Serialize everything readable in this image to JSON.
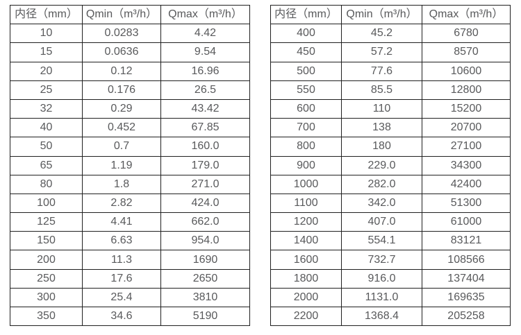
{
  "colors": {
    "background": "#ffffff",
    "border": "#1f1f1f",
    "text": "#58595b"
  },
  "tables": [
    {
      "name": "flow-spec-table-small-diameters",
      "headers": [
        "内径（mm）",
        "Qmin（m³/h）",
        "Qmax（m³/h）"
      ],
      "rows": [
        [
          "10",
          "0.0283",
          "4.42"
        ],
        [
          "15",
          "0.0636",
          "9.54"
        ],
        [
          "20",
          "0.12",
          "16.96"
        ],
        [
          "25",
          "0.176",
          "26.5"
        ],
        [
          "32",
          "0.29",
          "43.42"
        ],
        [
          "40",
          "0.452",
          "67.85"
        ],
        [
          "50",
          "0.7",
          "160.0"
        ],
        [
          "65",
          "1.19",
          "179.0"
        ],
        [
          "80",
          "1.8",
          "271.0"
        ],
        [
          "100",
          "2.82",
          "424.0"
        ],
        [
          "125",
          "4.41",
          "662.0"
        ],
        [
          "150",
          "6.63",
          "954.0"
        ],
        [
          "200",
          "11.3",
          "1690"
        ],
        [
          "250",
          "17.6",
          "2650"
        ],
        [
          "300",
          "25.4",
          "3810"
        ],
        [
          "350",
          "34.6",
          "5190"
        ]
      ]
    },
    {
      "name": "flow-spec-table-large-diameters",
      "headers": [
        "内径（mm）",
        "Qmin（m³/h）",
        "Qmax（m³/h）"
      ],
      "rows": [
        [
          "400",
          "45.2",
          "6780"
        ],
        [
          "450",
          "57.2",
          "8570"
        ],
        [
          "500",
          "77.6",
          "10600"
        ],
        [
          "550",
          "85.5",
          "12800"
        ],
        [
          "600",
          "110",
          "15200"
        ],
        [
          "700",
          "138",
          "20700"
        ],
        [
          "800",
          "180",
          "27100"
        ],
        [
          "900",
          "229.0",
          "34300"
        ],
        [
          "1000",
          "282.0",
          "42400"
        ],
        [
          "1100",
          "342.0",
          "51300"
        ],
        [
          "1200",
          "407.0",
          "61000"
        ],
        [
          "1400",
          "554.1",
          "83121"
        ],
        [
          "1600",
          "732.7",
          "108566"
        ],
        [
          "1800",
          "916.0",
          "137404"
        ],
        [
          "2000",
          "1131.0",
          "169635"
        ],
        [
          "2200",
          "1368.4",
          "205258"
        ]
      ]
    }
  ]
}
